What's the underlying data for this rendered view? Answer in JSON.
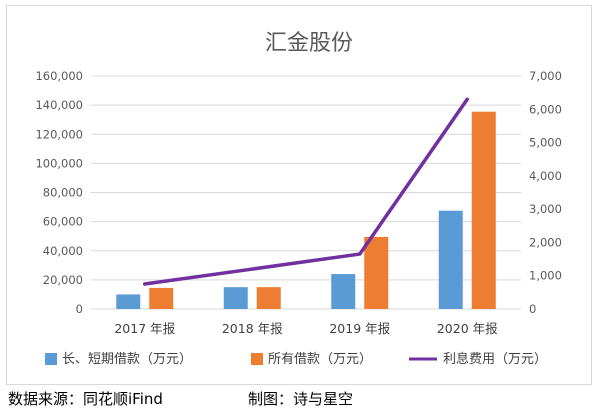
{
  "chart_data": {
    "type": "bar",
    "title": "汇金股份",
    "categories": [
      "2017 年报",
      "2018 年报",
      "2019 年报",
      "2020 年报"
    ],
    "series": [
      {
        "name": "长、短期借款（万元）",
        "kind": "bar",
        "axis": "left",
        "color": "#5b9bd5",
        "values": [
          10000,
          15000,
          24000,
          67500
        ]
      },
      {
        "name": "所有借款（万元）",
        "kind": "bar",
        "axis": "left",
        "color": "#ed7d31",
        "values": [
          14500,
          15000,
          49500,
          135500
        ]
      },
      {
        "name": "利息费用（万元）",
        "kind": "line",
        "axis": "right",
        "color": "#7030a0",
        "values": [
          750,
          1200,
          1650,
          6300
        ]
      }
    ],
    "y_left": {
      "min": 0,
      "max": 160000,
      "ticks": [
        "0",
        "20,000",
        "40,000",
        "60,000",
        "80,000",
        "100,000",
        "120,000",
        "140,000",
        "160,000"
      ]
    },
    "y_right": {
      "min": 0,
      "max": 7000,
      "ticks": [
        "0",
        "1,000",
        "2,000",
        "3,000",
        "4,000",
        "5,000",
        "6,000",
        "7,000"
      ]
    },
    "grid": true,
    "legend_position": "bottom"
  },
  "footer": {
    "source": "数据来源：同花顺iFind",
    "author": "制图：诗与星空"
  }
}
